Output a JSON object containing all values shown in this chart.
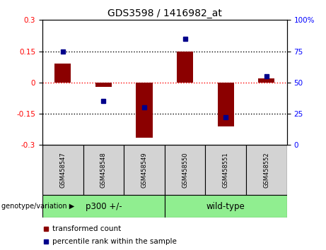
{
  "title": "GDS3598 / 1416982_at",
  "samples": [
    "GSM458547",
    "GSM458548",
    "GSM458549",
    "GSM458550",
    "GSM458551",
    "GSM458552"
  ],
  "red_values": [
    0.09,
    -0.02,
    -0.265,
    0.15,
    -0.21,
    0.02
  ],
  "blue_percentiles": [
    75,
    35,
    30,
    85,
    22,
    55
  ],
  "groups": [
    {
      "label": "p300 +/-",
      "start": 0,
      "end": 3,
      "color": "#90EE90"
    },
    {
      "label": "wild-type",
      "start": 3,
      "end": 6,
      "color": "#90EE90"
    }
  ],
  "group_label": "genotype/variation",
  "ylim": [
    -0.3,
    0.3
  ],
  "yticks_left": [
    -0.3,
    -0.15,
    0,
    0.15,
    0.3
  ],
  "ytick_left_labels": [
    "-0.3",
    "-0.15",
    "0",
    "0.15",
    "0.3"
  ],
  "yticks_right": [
    0,
    25,
    50,
    75,
    100
  ],
  "ytick_right_labels": [
    "0",
    "25",
    "50",
    "75",
    "100%"
  ],
  "right_ylim": [
    0,
    100
  ],
  "bar_color": "#8B0000",
  "dot_color": "#00008B",
  "legend_items": [
    "transformed count",
    "percentile rank within the sample"
  ],
  "legend_colors": [
    "#8B0000",
    "#00008B"
  ],
  "sample_box_color": "#d3d3d3",
  "bar_width": 0.4,
  "dot_size": 5
}
